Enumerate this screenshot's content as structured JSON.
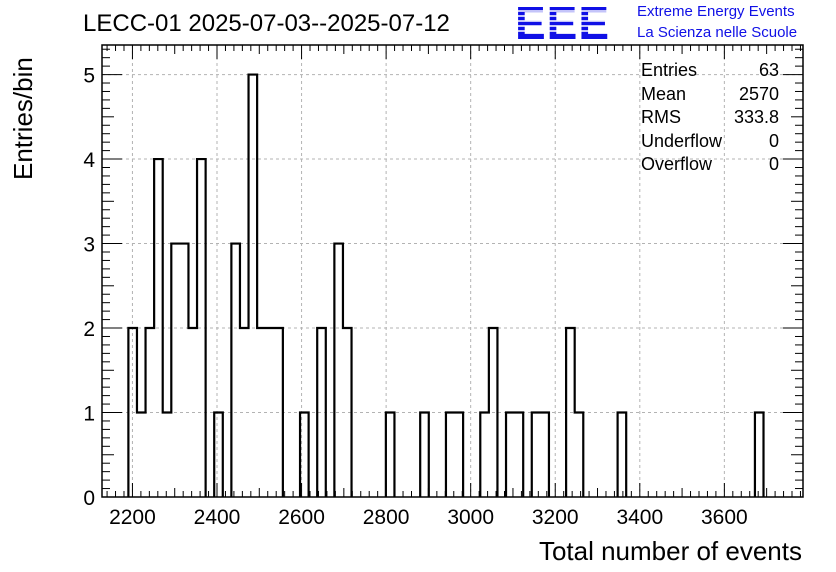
{
  "title": "LECC-01 2025-07-03--2025-07-12",
  "logo": {
    "text": "EEE",
    "line1": "Extreme Energy Events",
    "line2": "La Scienza nelle Scuole",
    "color": "#1010e6"
  },
  "stats": [
    {
      "label": "Entries",
      "value": "63"
    },
    {
      "label": "Mean",
      "value": "2570"
    },
    {
      "label": "RMS",
      "value": "333.8"
    },
    {
      "label": "Underflow",
      "value": "0"
    },
    {
      "label": "Overflow",
      "value": "0"
    }
  ],
  "chart_data": {
    "type": "histogram",
    "title": "LECC-01 2025-07-03--2025-07-12",
    "xlabel": "Total number of events",
    "ylabel": "Entries/bin",
    "xlim": [
      2128,
      3786
    ],
    "ylim": [
      0,
      5.35
    ],
    "bin_width": 20.3,
    "x_ticks": [
      2200,
      2400,
      2600,
      2800,
      3000,
      3200,
      3400,
      3600
    ],
    "y_ticks": [
      0,
      1,
      2,
      3,
      4,
      5
    ],
    "grid": true,
    "line_color": "#000000",
    "bins": [
      {
        "x0": 2190.4,
        "count": 2
      },
      {
        "x0": 2210.7,
        "count": 1
      },
      {
        "x0": 2231.0,
        "count": 2
      },
      {
        "x0": 2251.3,
        "count": 4
      },
      {
        "x0": 2271.6,
        "count": 1
      },
      {
        "x0": 2291.9,
        "count": 3
      },
      {
        "x0": 2312.2,
        "count": 3
      },
      {
        "x0": 2332.5,
        "count": 2
      },
      {
        "x0": 2352.8,
        "count": 4
      },
      {
        "x0": 2393.4,
        "count": 1
      },
      {
        "x0": 2434.0,
        "count": 3
      },
      {
        "x0": 2454.3,
        "count": 2
      },
      {
        "x0": 2474.6,
        "count": 5
      },
      {
        "x0": 2494.9,
        "count": 2
      },
      {
        "x0": 2515.2,
        "count": 2
      },
      {
        "x0": 2535.5,
        "count": 2
      },
      {
        "x0": 2596.4,
        "count": 1
      },
      {
        "x0": 2637.0,
        "count": 2
      },
      {
        "x0": 2677.6,
        "count": 3
      },
      {
        "x0": 2697.9,
        "count": 2
      },
      {
        "x0": 2799.4,
        "count": 1
      },
      {
        "x0": 2880.6,
        "count": 1
      },
      {
        "x0": 2941.5,
        "count": 1
      },
      {
        "x0": 2961.8,
        "count": 1
      },
      {
        "x0": 3022.7,
        "count": 1
      },
      {
        "x0": 3043.0,
        "count": 2
      },
      {
        "x0": 3083.6,
        "count": 1
      },
      {
        "x0": 3103.9,
        "count": 1
      },
      {
        "x0": 3144.5,
        "count": 1
      },
      {
        "x0": 3164.8,
        "count": 1
      },
      {
        "x0": 3225.7,
        "count": 2
      },
      {
        "x0": 3246.0,
        "count": 1
      },
      {
        "x0": 3347.5,
        "count": 1
      },
      {
        "x0": 3672.3,
        "count": 1
      }
    ]
  }
}
